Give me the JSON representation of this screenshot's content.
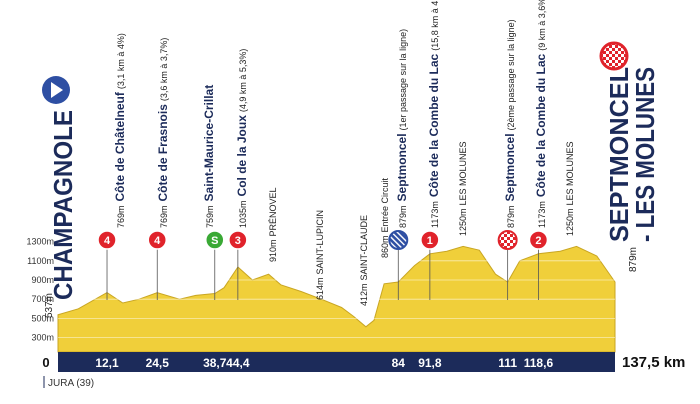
{
  "chart_data": {
    "type": "area",
    "start": {
      "name": "CHAMPAGNOLE",
      "elevation": "537m"
    },
    "finish": {
      "name_lines": [
        "SEPTMONCEL",
        "- LES MOLUNES"
      ],
      "elevation": "879m"
    },
    "color": "#f0cf3a",
    "x": [
      0,
      5,
      12.1,
      16,
      20,
      24.5,
      30,
      34,
      38.7,
      41,
      44.4,
      48,
      52,
      55,
      60,
      65,
      70,
      73,
      76,
      78,
      80.5,
      84,
      88,
      91.8,
      96,
      100,
      104,
      108,
      111,
      114,
      118.6,
      124,
      128,
      133,
      137.5
    ],
    "values": [
      537,
      600,
      769,
      660,
      700,
      769,
      700,
      740,
      759,
      820,
      1035,
      900,
      960,
      850,
      780,
      700,
      614,
      520,
      412,
      480,
      860,
      879,
      1050,
      1173,
      1200,
      1250,
      1210,
      960,
      879,
      1100,
      1173,
      1200,
      1250,
      1150,
      879
    ],
    "xlim": [
      0,
      137.5
    ],
    "ylim": [
      150,
      1400
    ],
    "xticks": [
      {
        "value": 0,
        "label": "0"
      },
      {
        "value": 12.1,
        "label": "12,1"
      },
      {
        "value": 24.5,
        "label": "24,5"
      },
      {
        "value": 38.7,
        "label": "38,7"
      },
      {
        "value": 44.4,
        "label": "44,4"
      },
      84,
      {
        "value": 91.8,
        "label": "91,8"
      },
      111,
      {
        "value": 118.6,
        "label": "118,6"
      },
      {
        "value": 137.5,
        "label": "137,5 km"
      }
    ],
    "yticks": [
      {
        "value": 300,
        "label": "300m"
      },
      {
        "value": 500,
        "label": "500m"
      },
      {
        "value": 700,
        "label": "700m"
      },
      {
        "value": 900,
        "label": "900m"
      },
      {
        "value": 1100,
        "label": "1100m"
      },
      {
        "value": 1300,
        "label": "1300m"
      }
    ],
    "grid": true,
    "markers": [
      {
        "x": 12.1,
        "label": "4",
        "color": "#e0232b"
      },
      {
        "x": 24.5,
        "label": "4",
        "color": "#e0232b"
      },
      {
        "x": 38.7,
        "label": "S",
        "color": "#3aa935"
      },
      {
        "x": 44.4,
        "label": "3",
        "color": "#e0232b"
      },
      {
        "x": 84,
        "color": "#2e4fa3",
        "pattern": "striped"
      },
      {
        "x": 91.8,
        "label": "1",
        "color": "#e0232b"
      },
      {
        "x": 111,
        "color": "#e0232b",
        "pattern": "checkered"
      },
      {
        "x": 118.6,
        "label": "2",
        "color": "#e0232b"
      }
    ],
    "annotations": [
      {
        "elevation": "769m",
        "name": "Côte de Châtelneuf",
        "detail": "(3,1 km à 4%)"
      },
      {
        "elevation": "769m",
        "name": "Côte de Frasnois",
        "detail": "(3,6 km à 3,7%)"
      },
      {
        "elevation": "759m",
        "name": "Saint-Maurice-Crillat"
      },
      {
        "elevation": "1035m",
        "name": "Col de la Joux",
        "detail": "(4,9 km à 5,3%)"
      },
      {
        "elevation": "910m",
        "detail": "PRÉNOVEL"
      },
      {
        "elevation": "614m",
        "detail": "SAINT-LUPICIN"
      },
      {
        "elevation": "412m",
        "detail": "SAINT-CLAUDE"
      },
      {
        "elevation": "860m",
        "detail": "Entrée Circuit"
      },
      {
        "elevation": "879m",
        "name": "Septmoncel",
        "detail": "(1er passage sur la ligne)"
      },
      {
        "elevation": "1173m",
        "name": "Côte de la Combe du Lac",
        "detail": "(15,8 km à 4,7%)"
      },
      {
        "elevation": "1250m",
        "detail": "LES MOLUNES"
      },
      {
        "elevation": "879m",
        "name": "Septmoncel",
        "detail": "(2ème passage sur la ligne)"
      },
      {
        "elevation": "1173m",
        "name": "Côte de la Combe du Lac",
        "detail": "(9 km à 3,6%)"
      },
      {
        "elevation": "1250m",
        "detail": "LES MOLUNES"
      }
    ],
    "footer": "JURA (39)"
  }
}
